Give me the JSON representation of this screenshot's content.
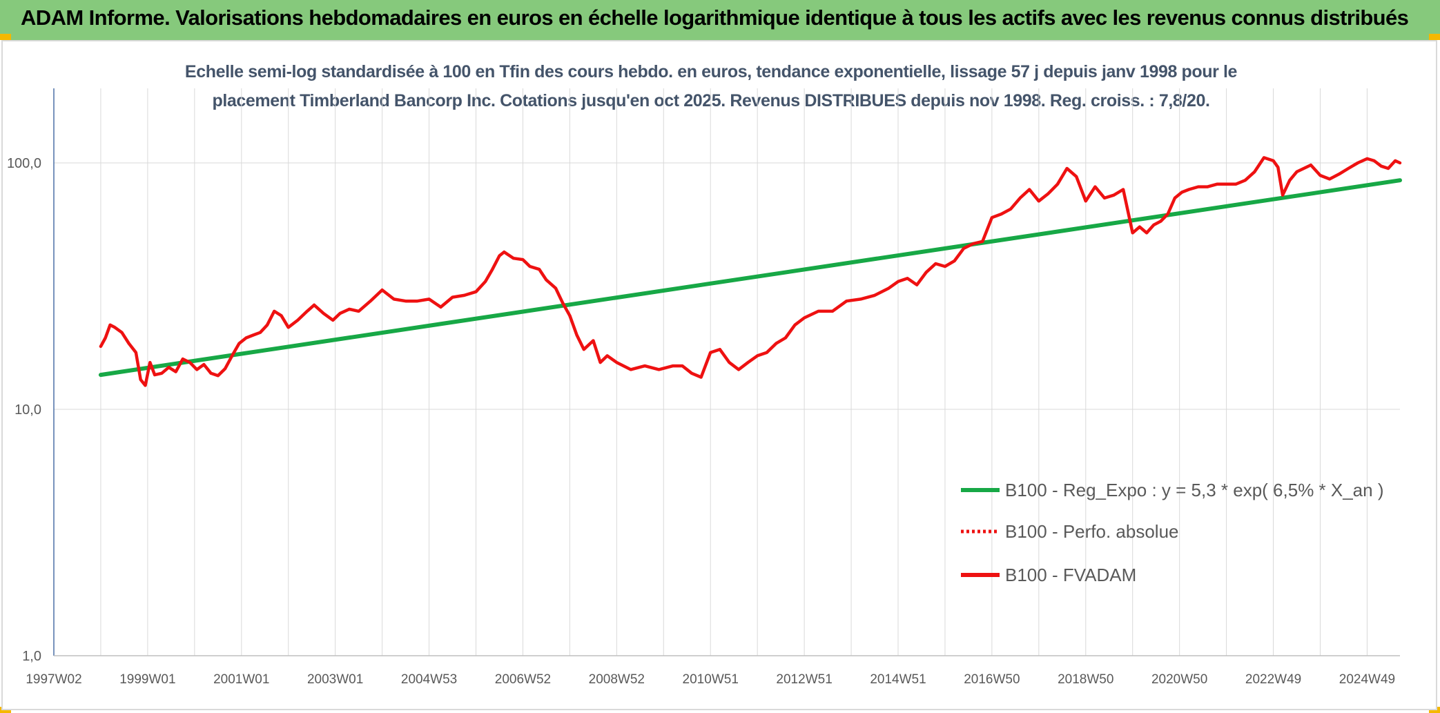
{
  "banner": {
    "title": "ADAM Informe. Valorisations hebdomadaires en euros en échelle logarithmique identique à tous les actifs avec les revenus connus distribués"
  },
  "colors": {
    "banner_bg": "#86c97c",
    "regression": "#17a846",
    "fvadam": "#ee1111",
    "grid": "#d9d9d9",
    "axis_text": "#595959",
    "subtitle": "#44546a"
  },
  "chart_data": {
    "type": "line",
    "title_line1": "Echelle semi-log standardisée à 100 en Tfin des cours hebdo. en euros, tendance exponentielle, lissage 57 j depuis janv 1998 pour le",
    "title_line2": "placement Timberland Bancorp Inc. Cotations jusqu'en oct 2025. Revenus DISTRIBUES depuis nov 1998. Reg. croiss. : 7,8/20.",
    "yscale": "log",
    "ylim": [
      1,
      200
    ],
    "y_ticks": [
      {
        "value": 1,
        "label": "1,0"
      },
      {
        "value": 10,
        "label": "10,0"
      },
      {
        "value": 100,
        "label": "100,0"
      }
    ],
    "x_range": [
      1997.0,
      2025.7
    ],
    "x_ticks": [
      {
        "year": 1997.0,
        "label": "1997W02"
      },
      {
        "year": 1999.0,
        "label": "1999W01"
      },
      {
        "year": 2001.0,
        "label": "2001W01"
      },
      {
        "year": 2003.0,
        "label": "2003W01"
      },
      {
        "year": 2005.0,
        "label": "2004W53"
      },
      {
        "year": 2007.0,
        "label": "2006W52"
      },
      {
        "year": 2009.0,
        "label": "2008W52"
      },
      {
        "year": 2011.0,
        "label": "2010W51"
      },
      {
        "year": 2013.0,
        "label": "2012W51"
      },
      {
        "year": 2015.0,
        "label": "2014W51"
      },
      {
        "year": 2017.0,
        "label": "2016W50"
      },
      {
        "year": 2019.0,
        "label": "2018W50"
      },
      {
        "year": 2021.0,
        "label": "2020W50"
      },
      {
        "year": 2023.0,
        "label": "2022W49"
      },
      {
        "year": 2025.0,
        "label": "2024W49"
      }
    ],
    "grid_years": [
      1998.0,
      2000.0,
      2002.0,
      2004.0,
      2006.0,
      2008.0,
      2010.0,
      2012.0,
      2014.0,
      2016.0,
      2018.0,
      2020.0,
      2022.0,
      2024.0
    ],
    "series": [
      {
        "name": "B100 - Reg_Expo : y = 5,3 * exp( 6,5% *  X_an )",
        "style": "solid-green",
        "x": [
          1998.0,
          2025.7
        ],
        "y": [
          13.8,
          85.0
        ]
      },
      {
        "name": "B100 - Perfo. absolue",
        "style": "dotted-red",
        "x": [],
        "y": []
      },
      {
        "name": "B100 - FVADAM",
        "style": "solid-red",
        "x": [
          1998.0,
          1998.1,
          1998.2,
          1998.3,
          1998.45,
          1998.6,
          1998.75,
          1998.85,
          1998.95,
          1999.05,
          1999.15,
          1999.3,
          1999.45,
          1999.6,
          1999.75,
          1999.9,
          2000.05,
          2000.2,
          2000.35,
          2000.5,
          2000.65,
          2000.8,
          2000.95,
          2001.1,
          2001.25,
          2001.4,
          2001.55,
          2001.7,
          2001.85,
          2002.0,
          2002.2,
          2002.4,
          2002.55,
          2002.75,
          2002.95,
          2003.1,
          2003.3,
          2003.5,
          2003.75,
          2004.0,
          2004.25,
          2004.5,
          2004.75,
          2005.0,
          2005.25,
          2005.5,
          2005.75,
          2006.0,
          2006.2,
          2006.35,
          2006.5,
          2006.6,
          2006.8,
          2007.0,
          2007.15,
          2007.35,
          2007.5,
          2007.7,
          2007.85,
          2008.0,
          2008.15,
          2008.3,
          2008.5,
          2008.65,
          2008.8,
          2009.0,
          2009.3,
          2009.6,
          2009.9,
          2010.2,
          2010.4,
          2010.6,
          2010.8,
          2011.0,
          2011.2,
          2011.4,
          2011.6,
          2011.8,
          2012.0,
          2012.2,
          2012.4,
          2012.6,
          2012.8,
          2013.0,
          2013.3,
          2013.6,
          2013.9,
          2014.2,
          2014.5,
          2014.8,
          2015.0,
          2015.2,
          2015.4,
          2015.6,
          2015.8,
          2016.0,
          2016.2,
          2016.4,
          2016.6,
          2016.8,
          2017.0,
          2017.2,
          2017.4,
          2017.6,
          2017.8,
          2018.0,
          2018.2,
          2018.4,
          2018.6,
          2018.8,
          2019.0,
          2019.2,
          2019.4,
          2019.6,
          2019.8,
          2020.0,
          2020.15,
          2020.3,
          2020.45,
          2020.6,
          2020.75,
          2020.9,
          2021.05,
          2021.2,
          2021.4,
          2021.6,
          2021.8,
          2022.0,
          2022.2,
          2022.4,
          2022.6,
          2022.8,
          2023.0,
          2023.1,
          2023.2,
          2023.35,
          2023.5,
          2023.65,
          2023.8,
          2024.0,
          2024.2,
          2024.4,
          2024.6,
          2024.8,
          2025.0,
          2025.15,
          2025.3,
          2025.45,
          2025.6,
          2025.7
        ],
        "y": [
          18.0,
          19.5,
          22.0,
          21.5,
          20.5,
          18.5,
          17.0,
          13.2,
          12.5,
          15.5,
          13.8,
          14.0,
          14.8,
          14.2,
          16.0,
          15.5,
          14.5,
          15.2,
          14.0,
          13.7,
          14.6,
          16.5,
          18.5,
          19.5,
          20.0,
          20.5,
          22.0,
          25.0,
          24.0,
          21.5,
          23.0,
          25.0,
          26.5,
          24.5,
          23.0,
          24.5,
          25.5,
          25.0,
          27.5,
          30.5,
          28.0,
          27.5,
          27.5,
          28.0,
          26.0,
          28.5,
          29.0,
          30.0,
          33.0,
          37.0,
          42.0,
          43.5,
          41.0,
          40.5,
          38.0,
          37.0,
          33.5,
          31.0,
          27.0,
          24.0,
          20.0,
          17.5,
          19.0,
          15.5,
          16.5,
          15.5,
          14.5,
          15.0,
          14.5,
          15.0,
          15.0,
          14.0,
          13.5,
          17.0,
          17.5,
          15.5,
          14.5,
          15.5,
          16.5,
          17.0,
          18.5,
          19.5,
          22.0,
          23.5,
          25.0,
          25.0,
          27.5,
          28.0,
          29.0,
          31.0,
          33.0,
          34.0,
          32.0,
          36.0,
          39.0,
          38.0,
          40.0,
          45.0,
          47.0,
          48.0,
          60.0,
          62.0,
          65.0,
          72.0,
          78.0,
          70.0,
          75.0,
          82.0,
          95.0,
          88.0,
          70.0,
          80.0,
          72.0,
          74.0,
          78.0,
          52.0,
          55.0,
          52.0,
          56.0,
          58.0,
          62.0,
          72.0,
          76.0,
          78.0,
          80.0,
          80.0,
          82.0,
          82.0,
          82.0,
          85.0,
          92.0,
          105.0,
          102.0,
          96.0,
          74.0,
          85.0,
          92.0,
          95.0,
          98.0,
          89.0,
          86.0,
          90.0,
          95.0,
          100.0,
          104.0,
          102.0,
          97.0,
          95.0,
          102.0,
          100.0
        ]
      }
    ],
    "legend_position": "lower-right"
  }
}
